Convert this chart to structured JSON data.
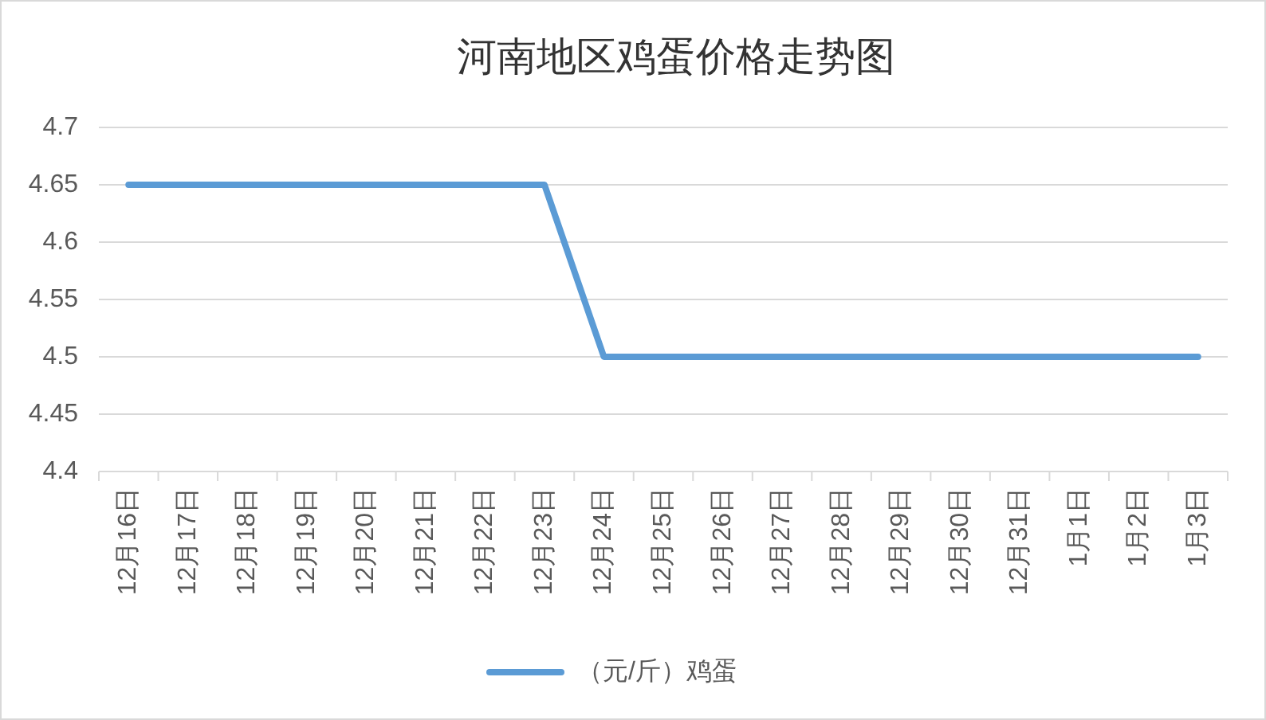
{
  "chart_data": {
    "type": "line",
    "title": "河南地区鸡蛋价格走势图",
    "categories": [
      "12月16日",
      "12月17日",
      "12月18日",
      "12月19日",
      "12月20日",
      "12月21日",
      "12月22日",
      "12月23日",
      "12月24日",
      "12月25日",
      "12月26日",
      "12月27日",
      "12月28日",
      "12月29日",
      "12月30日",
      "12月31日",
      "1月1日",
      "1月2日",
      "1月3日"
    ],
    "series": [
      {
        "name": "（元/斤）鸡蛋",
        "color": "#5b9bd5",
        "values": [
          4.65,
          4.65,
          4.65,
          4.65,
          4.65,
          4.65,
          4.65,
          4.65,
          4.5,
          4.5,
          4.5,
          4.5,
          4.5,
          4.5,
          4.5,
          4.5,
          4.5,
          4.5,
          4.5
        ]
      }
    ],
    "ylim": [
      4.4,
      4.7
    ],
    "yticks": [
      4.4,
      4.45,
      4.5,
      4.55,
      4.6,
      4.65,
      4.7
    ],
    "grid": "y",
    "legend": "bottom",
    "marker": "none",
    "line_style": "solid"
  }
}
